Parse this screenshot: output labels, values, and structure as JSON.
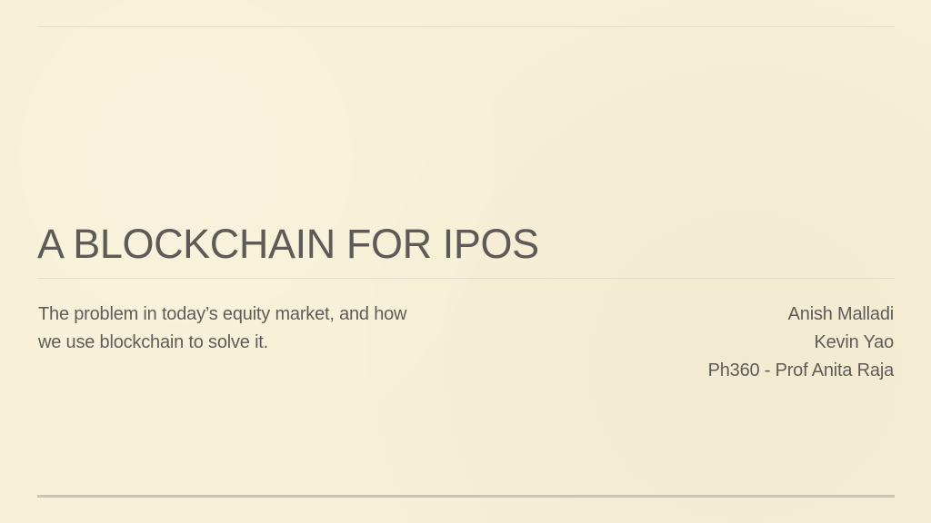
{
  "slide": {
    "title": "A BLOCKCHAIN FOR IPOS",
    "subtitle_lines": [
      "The problem in today’s equity market, and how",
      "we use blockchain to solve it."
    ],
    "authors": [
      "Anish Malladi",
      "Kevin Yao",
      "Ph360 - Prof Anita Raja"
    ]
  },
  "colors": {
    "background": "#f7f0d6",
    "text": "#5f5c58",
    "rule": "#c9c4b4"
  }
}
